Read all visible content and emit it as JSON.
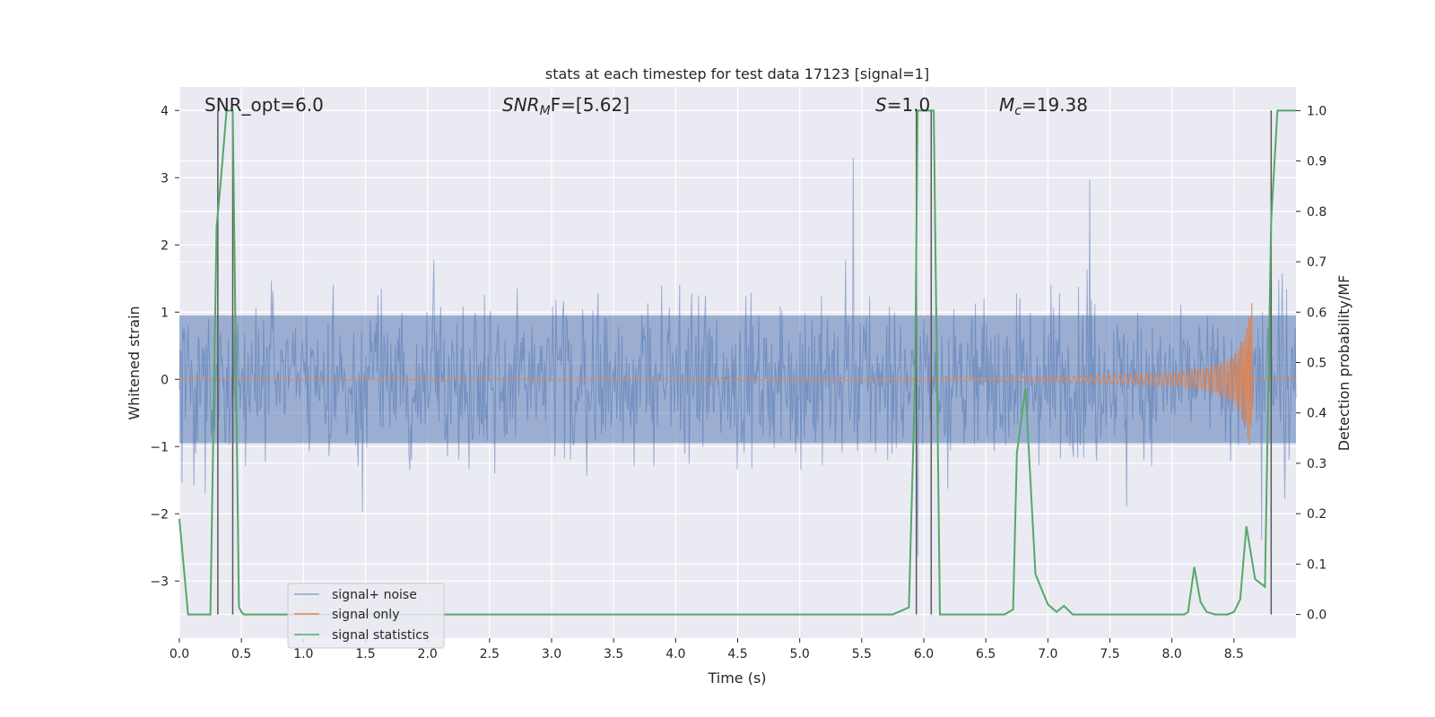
{
  "chart_data": {
    "type": "line",
    "title": "stats at each timestep for test data 17123 [signal=1]",
    "xlabel": "Time (s)",
    "ylabel_left": "Whitened strain",
    "ylabel_right": "Detection probability/MF",
    "xlim": [
      0,
      9
    ],
    "ylim_left": [
      -3.85,
      4.35
    ],
    "ylim_right": [
      -0.047,
      1.047
    ],
    "x_ticks": [
      "0.0",
      "0.5",
      "1.0",
      "1.5",
      "2.0",
      "2.5",
      "3.0",
      "3.5",
      "4.0",
      "4.5",
      "5.0",
      "5.5",
      "6.0",
      "6.5",
      "7.0",
      "7.5",
      "8.0",
      "8.5"
    ],
    "x_tick_values": [
      0,
      0.5,
      1,
      1.5,
      2,
      2.5,
      3,
      3.5,
      4,
      4.5,
      5,
      5.5,
      6,
      6.5,
      7,
      7.5,
      8,
      8.5
    ],
    "y_left_ticks": [
      "−3",
      "−2",
      "−1",
      "0",
      "1",
      "2",
      "3",
      "4"
    ],
    "y_left_tick_values": [
      -3,
      -2,
      -1,
      0,
      1,
      2,
      3,
      4
    ],
    "y_right_ticks": [
      "0.0",
      "0.1",
      "0.2",
      "0.3",
      "0.4",
      "0.5",
      "0.6",
      "0.7",
      "0.8",
      "0.9",
      "1.0"
    ],
    "y_right_tick_values": [
      0,
      0.1,
      0.2,
      0.3,
      0.4,
      0.5,
      0.6,
      0.7,
      0.8,
      0.9,
      1.0
    ],
    "grid": true,
    "legend_position": "lower-left",
    "annotations": {
      "snr_opt": "SNR_opt=6.0",
      "snr_mf_base": "SNR",
      "snr_mf_sub": "M",
      "snr_mf_rest": "F=[5.62]",
      "s_italic": "S",
      "s_rest": "=1.0",
      "mc_italic": "M",
      "mc_sub": "c",
      "mc_rest": "=19.38"
    },
    "series": [
      {
        "name": "signal+ noise",
        "color": "#4c72b0",
        "description": "whitened strain noise, approx. ±1.5 with spikes to ±3"
      },
      {
        "name": "signal only",
        "color": "#dd8452",
        "envelope": {
          "x": [
            0,
            4.0,
            6.0,
            7.0,
            8.0,
            8.3,
            8.5,
            8.6,
            8.65
          ],
          "amplitude": [
            0.005,
            0.01,
            0.02,
            0.04,
            0.1,
            0.18,
            0.35,
            0.75,
            1.2
          ]
        }
      },
      {
        "name": "signal statistics",
        "color": "#55a868",
        "axis": "right",
        "x": [
          0.0,
          0.07,
          0.25,
          0.3,
          0.33,
          0.38,
          0.43,
          0.48,
          0.5,
          0.52,
          0.58,
          0.7,
          1.0,
          2.0,
          3.0,
          4.0,
          5.0,
          5.75,
          5.88,
          5.93,
          5.95,
          6.0,
          6.08,
          6.13,
          6.15,
          6.2,
          6.5,
          6.65,
          6.72,
          6.75,
          6.82,
          6.9,
          7.0,
          7.07,
          7.13,
          7.2,
          7.27,
          7.5,
          8.0,
          8.1,
          8.13,
          8.18,
          8.23,
          8.28,
          8.35,
          8.45,
          8.5,
          8.55,
          8.6,
          8.67,
          8.75,
          8.8,
          8.85,
          8.9,
          8.93,
          9.0
        ],
        "y": [
          0.19,
          0.0,
          0.0,
          0.77,
          0.85,
          1.0,
          1.0,
          0.015,
          0.005,
          0.0,
          0.0,
          0.0,
          0.0,
          0.0,
          0.0,
          0.0,
          0.0,
          0.0,
          0.014,
          0.47,
          1.0,
          1.0,
          1.0,
          0.0,
          0.0,
          0.0,
          0.0,
          0.0,
          0.01,
          0.32,
          0.45,
          0.08,
          0.02,
          0.005,
          0.017,
          0.0,
          0.0,
          0.0,
          0.0,
          0.0,
          0.005,
          0.094,
          0.025,
          0.005,
          0.0,
          0.0,
          0.005,
          0.03,
          0.175,
          0.07,
          0.055,
          0.78,
          1.0,
          1.0,
          1.0,
          1.0
        ]
      }
    ],
    "vertical_lines": {
      "color": "#595959",
      "x": [
        0.31,
        0.43,
        5.94,
        6.06,
        8.8
      ],
      "y_top": 4.0,
      "y_bottom_right": 0.0
    }
  },
  "legend": {
    "items": [
      {
        "label": "signal+ noise",
        "color": "#4c72b0"
      },
      {
        "label": "signal only",
        "color": "#dd8452"
      },
      {
        "label": "signal statistics",
        "color": "#55a868"
      }
    ]
  }
}
